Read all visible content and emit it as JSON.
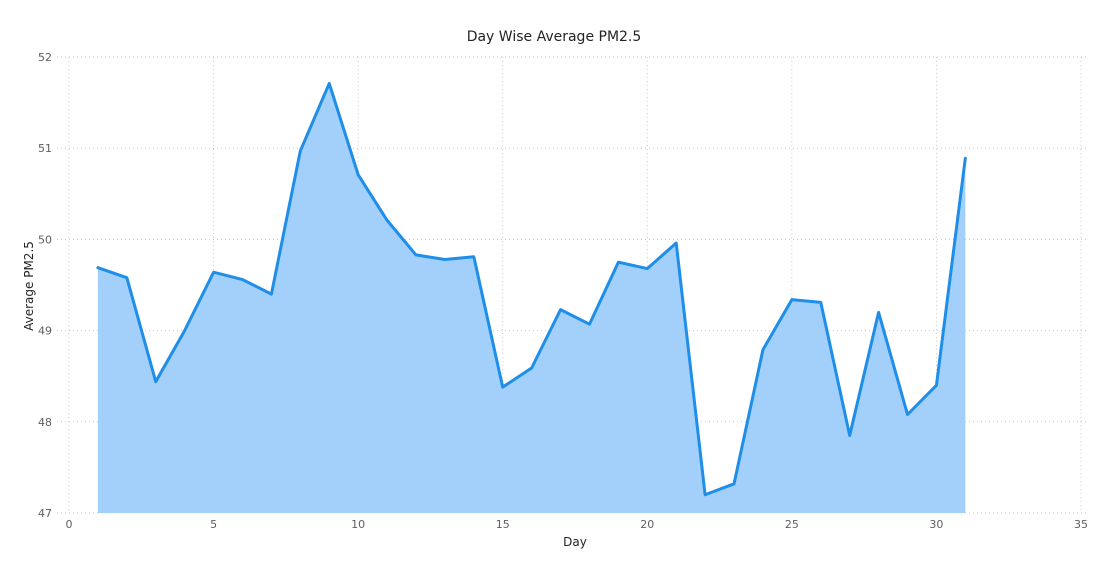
{
  "chart_data": {
    "type": "area",
    "title": "Day Wise Average PM2.5",
    "xlabel": "Day",
    "ylabel": "Average PM2.5",
    "xlim": [
      0,
      35
    ],
    "ylim": [
      47,
      52
    ],
    "x_ticks": [
      0,
      5,
      10,
      15,
      20,
      25,
      30,
      35
    ],
    "y_ticks": [
      47,
      48,
      49,
      50,
      51,
      52
    ],
    "grid": true,
    "line_color": "#1e8ee8",
    "fill_color": "#a3d0fb",
    "series": [
      {
        "x": [
          1,
          2,
          3,
          4,
          5,
          6,
          7,
          8,
          9,
          10,
          11,
          12,
          13,
          14,
          15,
          16,
          17,
          18,
          19,
          20,
          21,
          22,
          23,
          24,
          25,
          26,
          27,
          28,
          29,
          30,
          31
        ],
        "values": [
          49.69,
          49.58,
          48.44,
          49.0,
          49.64,
          49.56,
          49.4,
          50.97,
          51.71,
          50.71,
          50.21,
          49.83,
          49.78,
          49.81,
          48.38,
          48.59,
          49.23,
          49.07,
          49.75,
          49.68,
          49.96,
          47.2,
          47.32,
          48.79,
          49.34,
          49.31,
          47.85,
          49.2,
          48.08,
          48.4,
          50.89
        ]
      }
    ]
  }
}
